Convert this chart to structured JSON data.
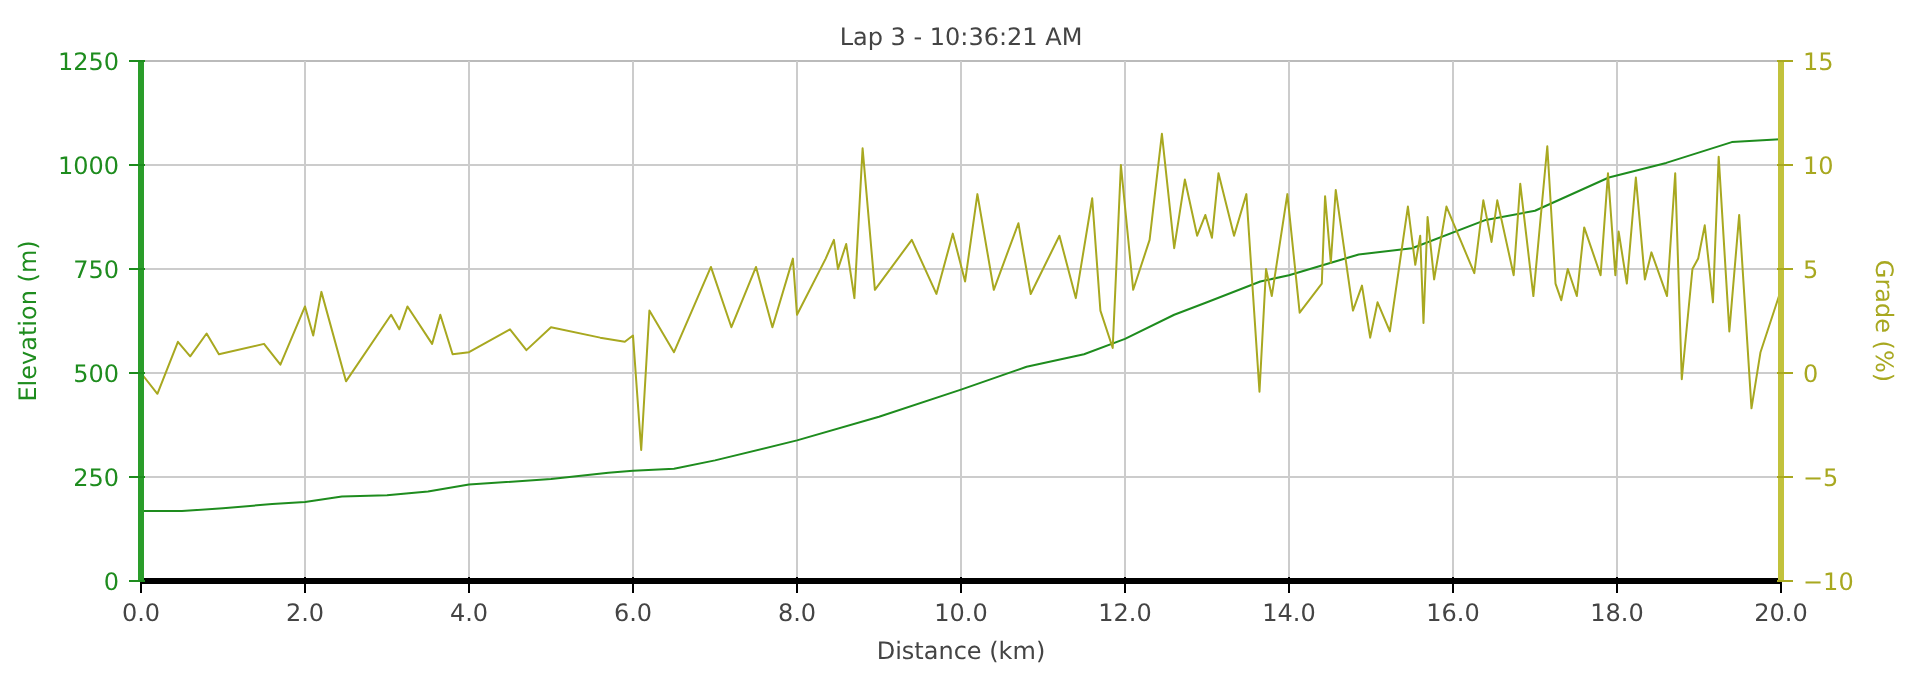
{
  "chart_data": {
    "type": "line",
    "title": "Lap 3 - 10:36:21 AM",
    "xlabel": "Distance (km)",
    "ylabel": "Elevation (m)",
    "y2label": "Grade (%)",
    "xlim": [
      0,
      20.0
    ],
    "xticks": [
      {
        "value": 0,
        "label": "0.0"
      },
      {
        "value": 2,
        "label": "2.0"
      },
      {
        "value": 4,
        "label": "4.0"
      },
      {
        "value": 6,
        "label": "6.0"
      },
      {
        "value": 8,
        "label": "8.0"
      },
      {
        "value": 10,
        "label": "10.0"
      },
      {
        "value": 12,
        "label": "12.0"
      },
      {
        "value": 14,
        "label": "14.0"
      },
      {
        "value": 16,
        "label": "16.0"
      },
      {
        "value": 18,
        "label": "18.0"
      },
      {
        "value": 20,
        "label": "20.0"
      }
    ],
    "ylim": [
      0,
      1250
    ],
    "yticks": [
      0,
      250,
      500,
      750,
      1000,
      1250
    ],
    "y2lim": [
      -10,
      15
    ],
    "y2ticks": [
      -10,
      -5,
      0,
      5,
      10,
      15
    ],
    "grid": true,
    "series": [
      {
        "color": "#1e8c1e",
        "x": [
          0,
          0.5,
          1,
          1.6,
          2,
          2.45,
          3,
          3.5,
          4,
          5,
          5.7,
          6,
          6.5,
          7,
          8,
          9,
          10,
          10.8,
          11.5,
          12,
          12.6,
          13,
          13.65,
          14,
          14.85,
          15.5,
          16.4,
          17,
          17.9,
          18.6,
          19.4,
          20
        ],
        "values": [
          168,
          168,
          175,
          185,
          190,
          203,
          206,
          215,
          232,
          245,
          260,
          265,
          270,
          290,
          338,
          395,
          460,
          515,
          545,
          582,
          640,
          670,
          720,
          735,
          785,
          800,
          868,
          890,
          970,
          1005,
          1055,
          1062
        ]
      },
      {
        "color": "#a8a820",
        "axis": "y2",
        "x": [
          0,
          0.2,
          0.45,
          0.6,
          0.8,
          0.95,
          1.5,
          1.7,
          2.0,
          2.1,
          2.2,
          2.5,
          3.05,
          3.15,
          3.25,
          3.55,
          3.65,
          3.8,
          4.0,
          4.5,
          4.7,
          5.0,
          5.6,
          5.9,
          6.0,
          6.1,
          6.2,
          6.5,
          6.95,
          7.2,
          7.5,
          7.7,
          7.95,
          8.0,
          8.35,
          8.45,
          8.5,
          8.6,
          8.7,
          8.8,
          8.95,
          9.4,
          9.7,
          9.9,
          10.05,
          10.2,
          10.4,
          10.7,
          10.85,
          11.2,
          11.4,
          11.6,
          11.7,
          11.85,
          11.95,
          12.1,
          12.3,
          12.45,
          12.6,
          12.73,
          12.88,
          12.98,
          13.06,
          13.14,
          13.33,
          13.48,
          13.64,
          13.72,
          13.79,
          13.98,
          14.13,
          14.4,
          14.44,
          14.51,
          14.57,
          14.78,
          14.89,
          14.99,
          15.08,
          15.23,
          15.45,
          15.54,
          15.6,
          15.64,
          15.69,
          15.77,
          15.92,
          16.26,
          16.37,
          16.47,
          16.54,
          16.74,
          16.82,
          16.98,
          17.15,
          17.25,
          17.32,
          17.4,
          17.51,
          17.6,
          17.8,
          17.89,
          17.98,
          18.02,
          18.12,
          18.23,
          18.34,
          18.42,
          18.61,
          18.71,
          18.79,
          18.92,
          18.99,
          19.07,
          19.17,
          19.24,
          19.37,
          19.49,
          19.64,
          19.75,
          20.0
        ],
        "values": [
          0,
          -1,
          1.5,
          0.8,
          1.9,
          0.9,
          1.4,
          0.4,
          3.2,
          1.8,
          3.9,
          -0.4,
          2.8,
          2.1,
          3.2,
          1.4,
          2.8,
          0.9,
          1.0,
          2.1,
          1.1,
          2.2,
          1.7,
          1.5,
          1.8,
          -3.7,
          3.0,
          1.0,
          5.1,
          2.2,
          5.1,
          2.2,
          5.5,
          2.8,
          5.5,
          6.4,
          5.0,
          6.2,
          3.6,
          10.8,
          4.0,
          6.4,
          3.8,
          6.7,
          4.4,
          8.6,
          4.0,
          7.2,
          3.8,
          6.6,
          3.6,
          8.4,
          3.0,
          1.2,
          10.0,
          4.0,
          6.4,
          11.5,
          6.0,
          9.3,
          6.6,
          7.6,
          6.5,
          9.6,
          6.6,
          8.6,
          -0.9,
          5.0,
          3.7,
          8.6,
          2.9,
          4.3,
          8.5,
          5.3,
          8.8,
          3.0,
          4.2,
          1.7,
          3.4,
          2.0,
          8.0,
          5.2,
          6.6,
          2.4,
          7.5,
          4.5,
          8.0,
          4.8,
          8.3,
          6.3,
          8.3,
          4.7,
          9.1,
          3.7,
          10.9,
          4.3,
          3.5,
          5.0,
          3.7,
          7.0,
          4.7,
          9.6,
          4.7,
          6.8,
          4.3,
          9.4,
          4.5,
          5.8,
          3.7,
          9.6,
          -0.3,
          5.0,
          5.5,
          7.1,
          3.4,
          10.4,
          2.0,
          7.6,
          -1.7,
          1.0,
          4.0
        ]
      }
    ]
  }
}
